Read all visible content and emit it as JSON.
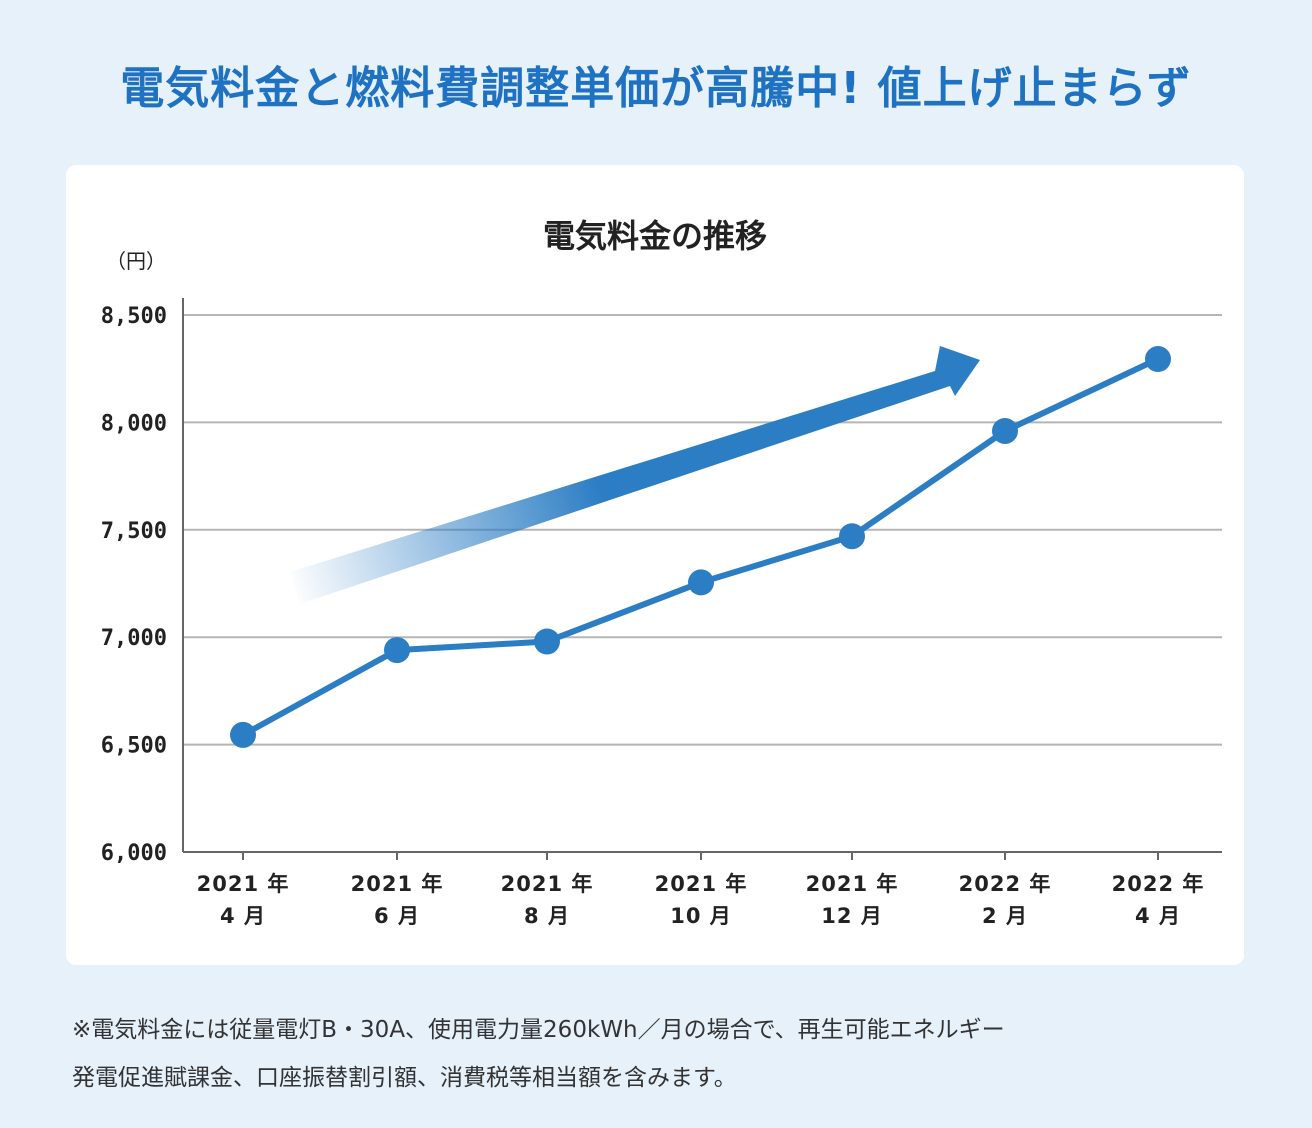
{
  "headline": "電気料金と燃料費調整単価が高騰中! 値上げ止まらず",
  "chart_data": {
    "type": "line",
    "title": "電気料金の推移",
    "ylabel": "（円）",
    "xlabel": "",
    "ylim": [
      6000,
      8500
    ],
    "yticks": [
      6000,
      6500,
      7000,
      7500,
      8000,
      8500
    ],
    "ytick_labels": [
      "6,000",
      "6,500",
      "7,000",
      "7,500",
      "8,000",
      "8,500"
    ],
    "categories": [
      [
        "2021 年",
        "4 月"
      ],
      [
        "2021 年",
        "6 月"
      ],
      [
        "2021 年",
        "8 月"
      ],
      [
        "2021 年",
        "10 月"
      ],
      [
        "2021 年",
        "12 月"
      ],
      [
        "2022 年",
        "2 月"
      ],
      [
        "2022 年",
        "4 月"
      ]
    ],
    "series": [
      {
        "name": "電気料金",
        "values": [
          6545,
          6940,
          6980,
          7255,
          7470,
          7960,
          8295
        ]
      }
    ],
    "grid": true,
    "legend": "none",
    "annotations": [
      "trend-arrow-up"
    ]
  },
  "footnote": {
    "line1": "※電気料金には従量電灯B・30A、使用電力量260kWh／月の場合で、再生可能エネルギー",
    "line2": "発電促進賦課金、口座振替割引額、消費税等相当額を含みます。"
  },
  "colors": {
    "accent": "#1f72c2",
    "line": "#2b7dc4",
    "grid": "#b5b5b5",
    "background": "#e6f1fa"
  }
}
